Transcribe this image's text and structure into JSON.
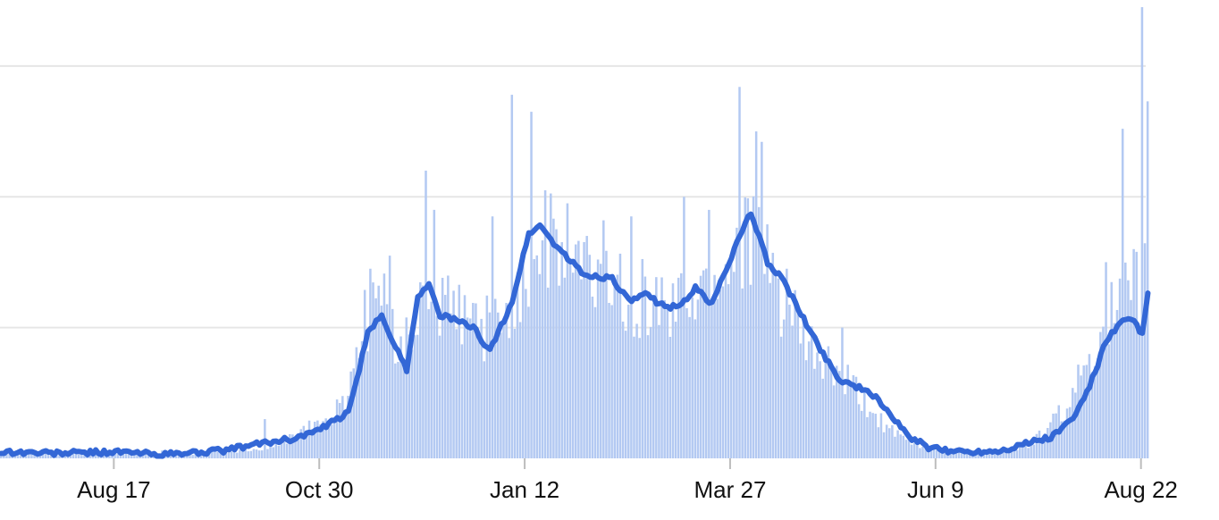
{
  "colors": {
    "bar": "#b3c9f2",
    "line": "#3367d6",
    "grid": "#e6e6e6",
    "axis": "#bdbdbd",
    "text": "#111111"
  },
  "chart_data": {
    "type": "bar",
    "title": "",
    "xlabel": "",
    "ylabel": "",
    "grid": true,
    "ylim": [
      0,
      3.45
    ],
    "yticks": [
      0,
      1,
      2,
      3
    ],
    "y_tick_labels_shown": false,
    "x_tick_labels": [
      "Aug 17",
      "Oct 30",
      "Jan 12",
      "Mar 27",
      "Jun 9",
      "Aug 22"
    ],
    "x_tick_day_index": [
      41,
      115,
      189,
      263,
      337,
      411
    ],
    "day_count": 414,
    "series": [
      {
        "name": "",
        "kind": "bar",
        "control_points": [
          [
            0,
            0.06
          ],
          [
            8,
            0.05
          ],
          [
            20,
            0.03
          ],
          [
            40,
            0.04
          ],
          [
            60,
            0.03
          ],
          [
            75,
            0.04
          ],
          [
            90,
            0.06
          ],
          [
            100,
            0.1
          ],
          [
            110,
            0.25
          ],
          [
            118,
            0.28
          ],
          [
            124,
            0.45
          ],
          [
            130,
            1.0
          ],
          [
            136,
            1.3
          ],
          [
            140,
            1.0
          ],
          [
            146,
            0.85
          ],
          [
            152,
            1.15
          ],
          [
            158,
            1.2
          ],
          [
            164,
            1.1
          ],
          [
            170,
            1.05
          ],
          [
            176,
            1.0
          ],
          [
            184,
            1.2
          ],
          [
            188,
            1.45
          ],
          [
            194,
            1.65
          ],
          [
            204,
            1.5
          ],
          [
            214,
            1.4
          ],
          [
            224,
            1.3
          ],
          [
            234,
            1.2
          ],
          [
            244,
            1.15
          ],
          [
            254,
            1.3
          ],
          [
            262,
            1.5
          ],
          [
            268,
            1.85
          ],
          [
            274,
            1.5
          ],
          [
            282,
            1.2
          ],
          [
            290,
            0.85
          ],
          [
            298,
            0.7
          ],
          [
            306,
            0.55
          ],
          [
            314,
            0.35
          ],
          [
            322,
            0.18
          ],
          [
            332,
            0.08
          ],
          [
            342,
            0.05
          ],
          [
            352,
            0.05
          ],
          [
            362,
            0.05
          ],
          [
            370,
            0.1
          ],
          [
            378,
            0.25
          ],
          [
            386,
            0.45
          ],
          [
            392,
            0.8
          ],
          [
            398,
            1.05
          ],
          [
            404,
            1.15
          ],
          [
            410,
            1.3
          ],
          [
            413,
            1.4
          ]
        ],
        "spikes": [
          [
            24,
            0.06
          ],
          [
            44,
            0.05
          ],
          [
            58,
            0.06
          ],
          [
            95,
            0.3
          ],
          [
            113,
            0.28
          ],
          [
            133,
            1.45
          ],
          [
            140,
            1.55
          ],
          [
            153,
            2.2
          ],
          [
            156,
            1.9
          ],
          [
            160,
            1.25
          ],
          [
            177,
            1.85
          ],
          [
            184,
            2.78
          ],
          [
            191,
            2.65
          ],
          [
            196,
            2.05
          ],
          [
            204,
            1.95
          ],
          [
            217,
            1.82
          ],
          [
            227,
            1.85
          ],
          [
            246,
            2.0
          ],
          [
            255,
            1.9
          ],
          [
            266,
            2.84
          ],
          [
            272,
            2.5
          ],
          [
            274,
            2.42
          ],
          [
            283,
            1.45
          ],
          [
            303,
            1.0
          ],
          [
            398,
            1.5
          ],
          [
            404,
            2.52
          ],
          [
            408,
            1.6
          ],
          [
            411,
            3.45
          ],
          [
            413,
            2.73
          ],
          [
            414,
            2.73
          ]
        ]
      },
      {
        "name": "",
        "kind": "line",
        "control_points": [
          [
            0,
            0.05
          ],
          [
            20,
            0.04
          ],
          [
            40,
            0.05
          ],
          [
            60,
            0.03
          ],
          [
            80,
            0.06
          ],
          [
            95,
            0.12
          ],
          [
            105,
            0.15
          ],
          [
            115,
            0.22
          ],
          [
            125,
            0.35
          ],
          [
            132,
            0.95
          ],
          [
            137,
            1.1
          ],
          [
            142,
            0.85
          ],
          [
            146,
            0.68
          ],
          [
            150,
            1.25
          ],
          [
            154,
            1.32
          ],
          [
            158,
            1.1
          ],
          [
            164,
            1.05
          ],
          [
            170,
            1.0
          ],
          [
            176,
            0.82
          ],
          [
            184,
            1.2
          ],
          [
            190,
            1.72
          ],
          [
            194,
            1.78
          ],
          [
            200,
            1.62
          ],
          [
            210,
            1.4
          ],
          [
            220,
            1.38
          ],
          [
            226,
            1.2
          ],
          [
            232,
            1.25
          ],
          [
            240,
            1.15
          ],
          [
            246,
            1.2
          ],
          [
            250,
            1.3
          ],
          [
            256,
            1.18
          ],
          [
            262,
            1.5
          ],
          [
            270,
            1.88
          ],
          [
            276,
            1.5
          ],
          [
            282,
            1.35
          ],
          [
            288,
            1.1
          ],
          [
            296,
            0.8
          ],
          [
            302,
            0.6
          ],
          [
            308,
            0.55
          ],
          [
            316,
            0.45
          ],
          [
            326,
            0.18
          ],
          [
            334,
            0.08
          ],
          [
            340,
            0.06
          ],
          [
            350,
            0.05
          ],
          [
            360,
            0.06
          ],
          [
            370,
            0.12
          ],
          [
            378,
            0.16
          ],
          [
            386,
            0.3
          ],
          [
            392,
            0.55
          ],
          [
            398,
            0.9
          ],
          [
            404,
            1.05
          ],
          [
            408,
            1.05
          ],
          [
            411,
            0.95
          ],
          [
            413,
            1.25
          ]
        ]
      }
    ]
  }
}
